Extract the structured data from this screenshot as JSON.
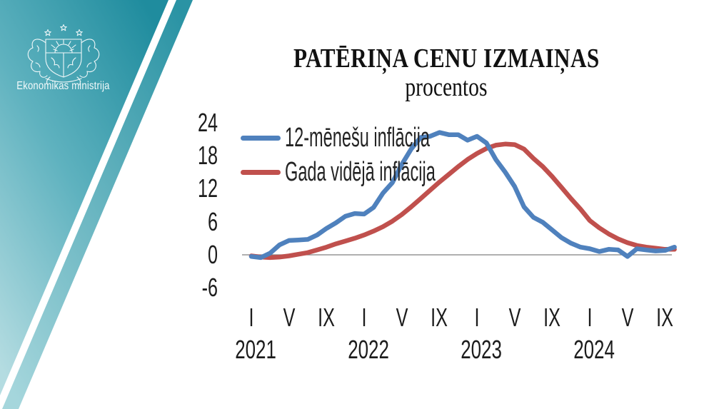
{
  "ministry": {
    "name": "Ekonomikas ministrija"
  },
  "theme": {
    "teal_top": "#1f8c9e",
    "teal_mid": "#5fb2bf",
    "teal_bottom": "#aedade",
    "zero_line_color": "#808080",
    "text_color": "#1c1c1c"
  },
  "chart_data": {
    "type": "line",
    "title": "PATĒRIŅA CENU IZMAIŅAS",
    "subtitle": "procentos",
    "ylim": [
      -6,
      24
    ],
    "grid": false,
    "legend_position": "top-left-inside",
    "y_ticks": [
      {
        "value": 24,
        "label": "24"
      },
      {
        "value": 18,
        "label": "18"
      },
      {
        "value": 12,
        "label": "12"
      },
      {
        "value": 6,
        "label": "6"
      },
      {
        "value": 0,
        "label": "0"
      },
      {
        "value": -6,
        "label": "-6"
      }
    ],
    "x_ticks": [
      {
        "m": 0,
        "label": "I"
      },
      {
        "m": 4,
        "label": "V"
      },
      {
        "m": 8,
        "label": "IX"
      },
      {
        "m": 12,
        "label": "I"
      },
      {
        "m": 16,
        "label": "V"
      },
      {
        "m": 20,
        "label": "IX"
      },
      {
        "m": 24,
        "label": "I"
      },
      {
        "m": 28,
        "label": "V"
      },
      {
        "m": 32,
        "label": "IX"
      },
      {
        "m": 36,
        "label": "I"
      },
      {
        "m": 40,
        "label": "V"
      },
      {
        "m": 44,
        "label": "IX"
      }
    ],
    "year_labels": [
      {
        "m": 0,
        "label": "2021"
      },
      {
        "m": 12,
        "label": "2022"
      },
      {
        "m": 24,
        "label": "2023"
      },
      {
        "m": 36,
        "label": "2024"
      }
    ],
    "x_range_note": "monthly, Jan 2021 - Oct 2024",
    "series": [
      {
        "name": "12-mēnešu inflācija",
        "color": "#4f81bd",
        "values": [
          -0.3,
          -0.5,
          0.3,
          1.8,
          2.6,
          2.7,
          2.8,
          3.6,
          4.8,
          5.8,
          7.0,
          7.5,
          7.4,
          8.6,
          11.2,
          13.1,
          16.4,
          19.2,
          21.3,
          21.5,
          22.2,
          21.8,
          21.8,
          20.8,
          21.5,
          20.3,
          17.3,
          15.0,
          12.4,
          8.7,
          6.8,
          5.9,
          4.5,
          3.1,
          2.1,
          1.4,
          1.1,
          0.6,
          1.0,
          0.9,
          -0.3,
          1.1,
          0.9,
          0.7,
          0.8,
          1.4
        ]
      },
      {
        "name": "Gada vidējā inflācija",
        "color": "#c0504d",
        "values": [
          -0.2,
          -0.4,
          -0.5,
          -0.4,
          -0.2,
          0.1,
          0.4,
          0.9,
          1.4,
          2.0,
          2.5,
          3.0,
          3.6,
          4.3,
          5.1,
          6.1,
          7.3,
          8.7,
          10.2,
          11.7,
          13.2,
          14.6,
          16.0,
          17.3,
          18.4,
          19.3,
          19.9,
          20.1,
          20.0,
          19.2,
          17.5,
          16.0,
          14.2,
          12.2,
          10.2,
          8.3,
          6.2,
          4.9,
          3.8,
          2.9,
          2.2,
          1.7,
          1.4,
          1.2,
          1.0,
          1.0
        ]
      }
    ],
    "zero_line": true
  }
}
